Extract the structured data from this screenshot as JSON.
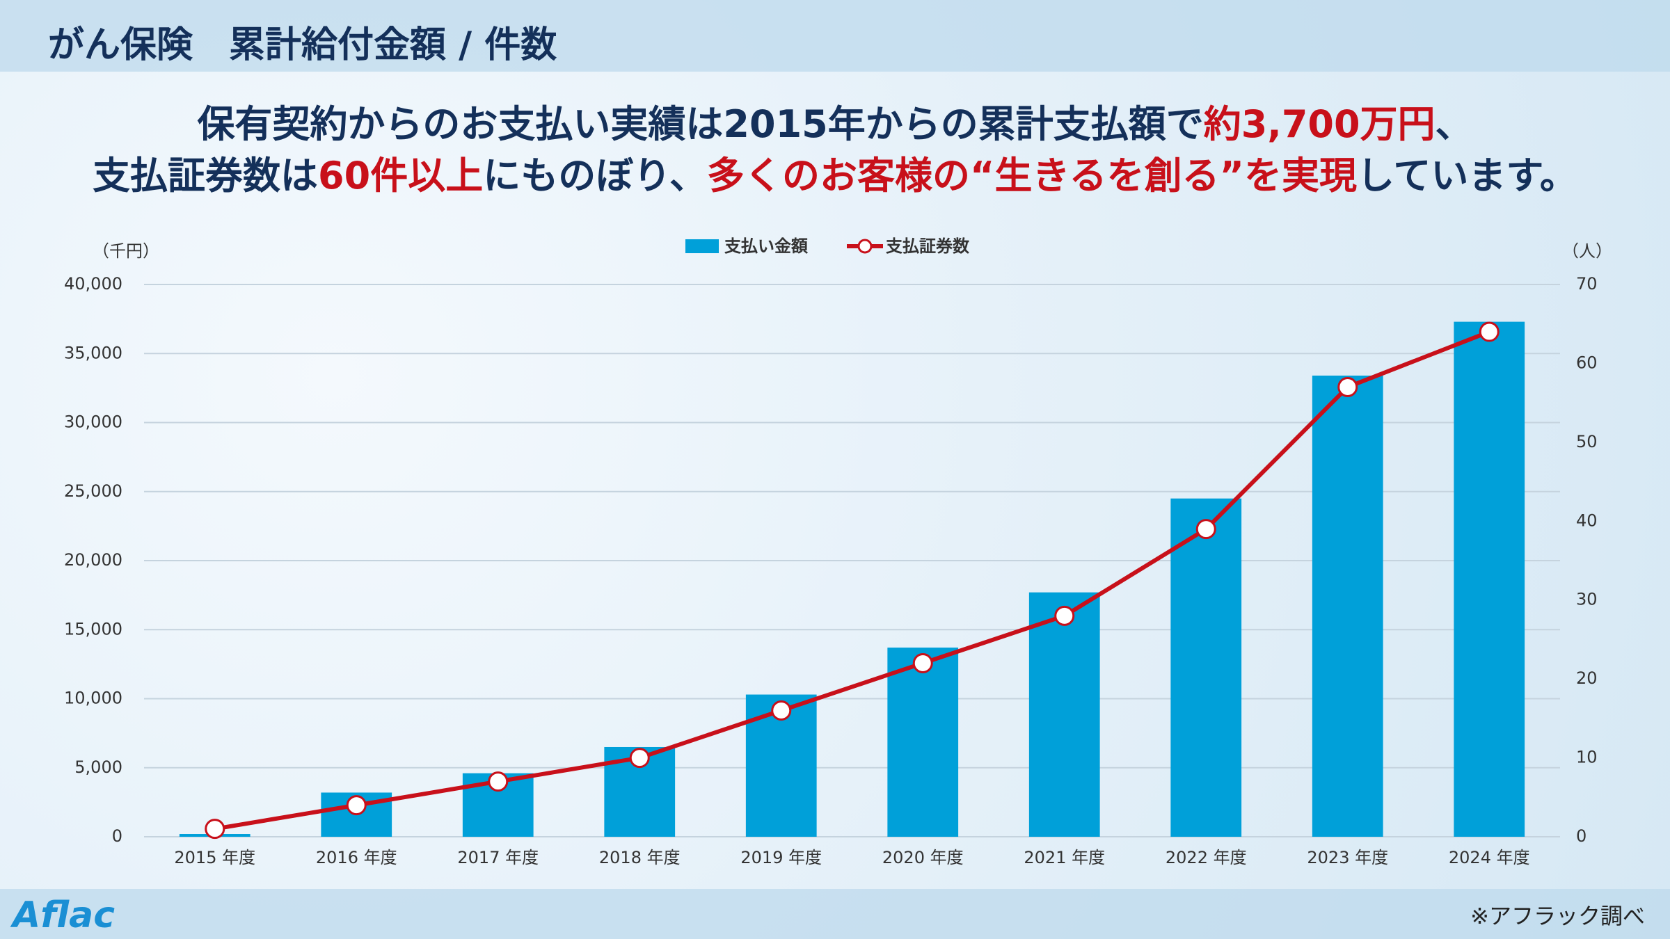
{
  "header": {
    "title": "がん保険　累計給付金額 / 件数"
  },
  "headline": [
    [
      {
        "text": "保有契約からのお支払い実績は2015年からの累計支払額で",
        "emphasis": false
      },
      {
        "text": "約3,700万円",
        "emphasis": true
      },
      {
        "text": "、",
        "emphasis": false
      }
    ],
    [
      {
        "text": "支払証券数は",
        "emphasis": false
      },
      {
        "text": "60件以上",
        "emphasis": true
      },
      {
        "text": "にものぼり、",
        "emphasis": false
      },
      {
        "text": "多くのお客様の“生きるを創る”",
        "emphasis": true
      },
      {
        "text": "を実現",
        "emphasis": true
      },
      {
        "text": "しています。",
        "emphasis": false
      }
    ]
  ],
  "chart_data": {
    "type": "bar",
    "y_unit": "（千円）",
    "y2_unit": "（人）",
    "categories": [
      "2015 年度",
      "2016 年度",
      "2017 年度",
      "2018 年度",
      "2019 年度",
      "2020 年度",
      "2021 年度",
      "2022 年度",
      "2023 年度",
      "2024 年度"
    ],
    "series": [
      {
        "name": "支払い金額",
        "type": "bar",
        "color": "#00a0d9",
        "values": [
          200,
          3200,
          4600,
          6500,
          10300,
          13700,
          17700,
          24500,
          33400,
          37300
        ]
      },
      {
        "name": "支払証券数",
        "type": "line",
        "axis": "y2",
        "color": "#c8101a",
        "values": [
          1,
          4,
          7,
          10,
          16,
          22,
          28,
          39,
          57,
          64
        ]
      }
    ],
    "ylim": [
      0,
      40000
    ],
    "yticks": [
      0,
      {
        "value": 5000,
        "label": "5,000"
      },
      {
        "value": 10000,
        "label": "10,000"
      },
      {
        "value": 15000,
        "label": "15,000"
      },
      {
        "value": 20000,
        "label": "20,000"
      },
      {
        "value": 25000,
        "label": "25,000"
      },
      {
        "value": 30000,
        "label": "30,000"
      },
      {
        "value": 35000,
        "label": "35,000"
      },
      {
        "value": 40000,
        "label": "40,000"
      }
    ],
    "y2lim": [
      0,
      70
    ],
    "y2ticks": [
      0,
      10,
      20,
      30,
      40,
      50,
      60,
      70
    ],
    "grid": true
  },
  "footer": {
    "logo": "Aflac",
    "note": "※アフラック調べ"
  }
}
